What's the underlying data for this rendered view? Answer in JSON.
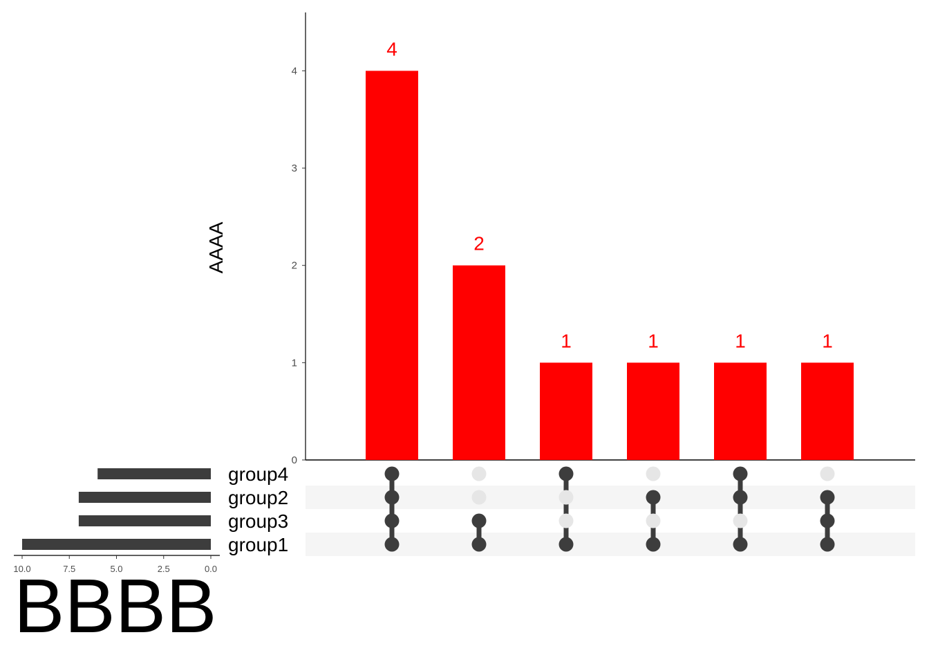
{
  "chart_data": {
    "type": "upset",
    "ylabel": "AAAA",
    "set_size_xlabel": "BBBB",
    "colors": {
      "intersection_bar": "#ff0000",
      "bar_label": "#ff0000",
      "set_bar": "#3d3d3d",
      "dot_active": "#3d3d3d",
      "dot_inactive": "#e6e6e6",
      "stripe": "#f5f5f5"
    },
    "intersection_axis": {
      "ylim": [
        0,
        4.6
      ],
      "ticks": [
        0,
        1,
        2,
        3,
        4
      ],
      "tick_labels": [
        "0",
        "1",
        "2",
        "3",
        "4"
      ]
    },
    "sets": [
      "group4",
      "group2",
      "group3",
      "group1"
    ],
    "set_sizes": [
      6,
      7,
      7,
      10
    ],
    "set_size_axis": {
      "xlim": [
        0,
        10.5
      ],
      "reversed": true,
      "ticks": [
        10,
        7.5,
        5,
        2.5,
        0
      ],
      "tick_labels": [
        "10.0",
        "7.5",
        "5.0",
        "2.5",
        "0.0"
      ]
    },
    "intersections": [
      {
        "value": 4,
        "label": "4",
        "members": [
          "group4",
          "group2",
          "group3",
          "group1"
        ]
      },
      {
        "value": 2,
        "label": "2",
        "members": [
          "group3",
          "group1"
        ]
      },
      {
        "value": 1,
        "label": "1",
        "members": [
          "group4",
          "group1"
        ]
      },
      {
        "value": 1,
        "label": "1",
        "members": [
          "group2",
          "group1"
        ]
      },
      {
        "value": 1,
        "label": "1",
        "members": [
          "group4",
          "group2",
          "group1"
        ]
      },
      {
        "value": 1,
        "label": "1",
        "members": [
          "group2",
          "group3",
          "group1"
        ]
      }
    ]
  }
}
